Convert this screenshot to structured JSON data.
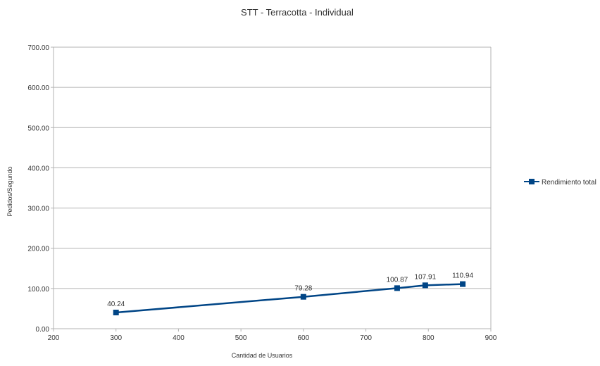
{
  "chart_data": {
    "type": "line",
    "title": "STT - Terracotta - Individual",
    "xlabel": "Cantidad de Usuarios",
    "ylabel": "Pedidos/Segundo",
    "xlim": [
      200,
      900
    ],
    "ylim": [
      0,
      700
    ],
    "x_ticks": [
      "200",
      "300",
      "400",
      "500",
      "600",
      "700",
      "800",
      "900"
    ],
    "y_ticks": [
      "0.00",
      "100.00",
      "200.00",
      "300.00",
      "400.00",
      "500.00",
      "600.00",
      "700.00"
    ],
    "grid": true,
    "legend_position": "right",
    "series": [
      {
        "name": "Rendimiento total",
        "color": "#004586",
        "marker": "square",
        "points": [
          {
            "x": 300,
            "y": 40.24,
            "label": "40.24"
          },
          {
            "x": 600,
            "y": 79.28,
            "label": "79.28"
          },
          {
            "x": 750,
            "y": 100.87,
            "label": "100.87"
          },
          {
            "x": 795,
            "y": 107.91,
            "label": "107.91"
          },
          {
            "x": 855,
            "y": 110.94,
            "label": "110.94"
          }
        ]
      }
    ]
  }
}
